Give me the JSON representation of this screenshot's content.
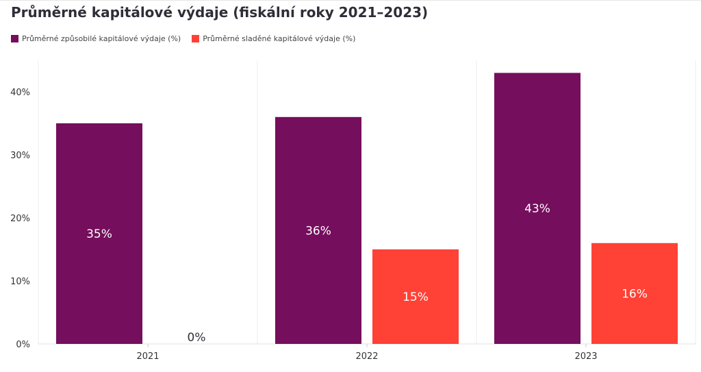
{
  "title": "Průměrné kapitálové výdaje (fiskální roky 2021–2023)",
  "legend": [
    {
      "label": "Průměrné způsobilé kapitálové výdaje (%)",
      "color": "#750e5c"
    },
    {
      "label": "Průměrné sladěné kapitálové výdaje (%)",
      "color": "#ff4136"
    }
  ],
  "chart_data": {
    "type": "bar",
    "categories": [
      "2021",
      "2022",
      "2023"
    ],
    "series": [
      {
        "name": "Průměrné způsobilé kapitálové výdaje (%)",
        "values": [
          35,
          36,
          43
        ],
        "labels": [
          "35%",
          "36%",
          "43%"
        ],
        "color": "#750e5c"
      },
      {
        "name": "Průměrné sladěné kapitálové výdaje (%)",
        "values": [
          0,
          15,
          16
        ],
        "labels": [
          "0%",
          "15%",
          "16%"
        ],
        "color": "#ff4136"
      }
    ],
    "yticks": [
      "0%",
      "10%",
      "20%",
      "30%",
      "40%"
    ],
    "ytick_values": [
      0,
      10,
      20,
      30,
      40
    ],
    "ylim": [
      0,
      45
    ],
    "legend_position": "top-left",
    "grid": "vertical-separators"
  }
}
